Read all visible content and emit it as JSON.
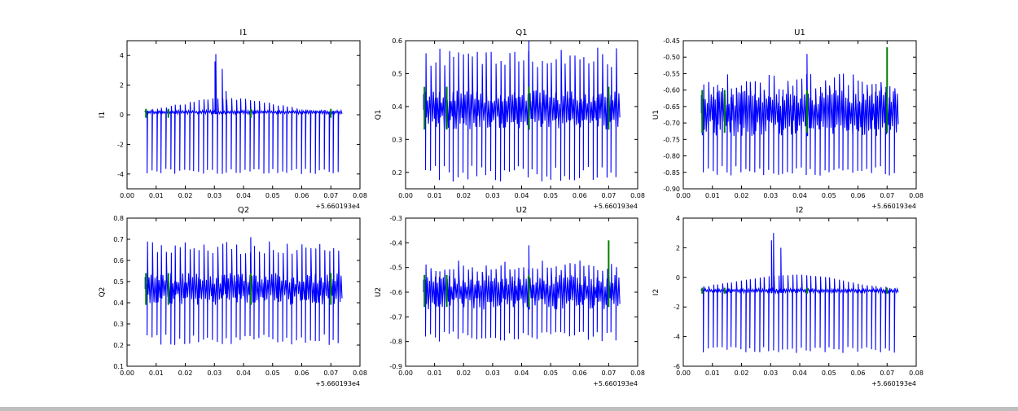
{
  "colors": {
    "signal": "#0000ff",
    "marker": "#008000",
    "axes": "#000000",
    "background": "#ffffff"
  },
  "chart_data": [
    {
      "type": "line",
      "title": "I1",
      "ylabel": "I1",
      "xlabel": "",
      "xlim": [
        0.0,
        0.08
      ],
      "ylim": [
        -5,
        5
      ],
      "x_ticks": [
        "0.00",
        "0.01",
        "0.02",
        "0.03",
        "0.04",
        "0.05",
        "0.06",
        "0.07",
        "0.08"
      ],
      "y_ticks": [
        "-4",
        "-2",
        "0",
        "2",
        "4"
      ],
      "x_offset_label": "+5.660193e4",
      "x_start": 0.0062,
      "x_end": 0.0742,
      "series": [
        {
          "kind": "signal",
          "band": [
            0.05,
            0.3
          ],
          "spike_low": [
            -4.0,
            -3.65
          ],
          "spike_high_envelope": [
            [
              0.0062,
              0.3
            ],
            [
              0.03,
              1.2
            ],
            [
              0.04,
              1.1
            ],
            [
              0.05,
              0.8
            ],
            [
              0.06,
              0.4
            ],
            [
              0.0742,
              0.2
            ]
          ],
          "peaks": [
            [
              0.0305,
              4.1
            ],
            [
              0.0302,
              3.6
            ],
            [
              0.0327,
              3.1
            ],
            [
              0.034,
              1.6
            ]
          ]
        },
        {
          "kind": "marker",
          "x": [
            0.0065,
            0.0142,
            0.0425,
            0.07
          ],
          "low": -0.2,
          "high": 0.4
        }
      ]
    },
    {
      "type": "line",
      "title": "Q1",
      "ylabel": "Q1",
      "xlabel": "",
      "xlim": [
        0.0,
        0.08
      ],
      "ylim": [
        0.15,
        0.6
      ],
      "x_ticks": [
        "0.00",
        "0.01",
        "0.02",
        "0.03",
        "0.04",
        "0.05",
        "0.06",
        "0.07",
        "0.08"
      ],
      "y_ticks": [
        "0.2",
        "0.3",
        "0.4",
        "0.5",
        "0.6"
      ],
      "x_offset_label": "+5.660193e4",
      "x_start": 0.0062,
      "x_end": 0.0742,
      "series": [
        {
          "kind": "signal",
          "band": [
            0.33,
            0.45
          ],
          "spike_low": [
            0.17,
            0.22
          ],
          "spike_high": [
            0.52,
            0.58
          ],
          "peaks": [
            [
              0.0425,
              0.6
            ]
          ]
        },
        {
          "kind": "marker",
          "x": [
            0.0065,
            0.0142,
            0.0425,
            0.07
          ],
          "low": 0.33,
          "high": 0.46
        }
      ]
    },
    {
      "type": "line",
      "title": "U1",
      "ylabel": "U1",
      "xlabel": "",
      "xlim": [
        0.0,
        0.08
      ],
      "ylim": [
        -0.9,
        -0.45
      ],
      "x_ticks": [
        "0.00",
        "0.01",
        "0.02",
        "0.03",
        "0.04",
        "0.05",
        "0.06",
        "0.07",
        "0.08"
      ],
      "y_ticks": [
        "-0.90",
        "-0.85",
        "-0.80",
        "-0.75",
        "-0.70",
        "-0.65",
        "-0.60",
        "-0.55",
        "-0.50",
        "-0.45"
      ],
      "x_offset_label": "+5.660193e4",
      "x_start": 0.0062,
      "x_end": 0.0742,
      "series": [
        {
          "kind": "signal",
          "band": [
            -0.74,
            -0.6
          ],
          "spike_low": [
            -0.86,
            -0.83
          ],
          "spike_high": [
            -0.6,
            -0.55
          ],
          "peaks": [
            [
              0.0425,
              -0.49
            ]
          ]
        },
        {
          "kind": "marker",
          "x": [
            0.0065,
            0.0142,
            0.0425,
            0.07
          ],
          "low": -0.73,
          "high": -0.6,
          "peaks": [
            [
              0.07,
              -0.47
            ]
          ]
        }
      ]
    },
    {
      "type": "line",
      "title": "Q2",
      "ylabel": "Q2",
      "xlabel": "",
      "xlim": [
        0.0,
        0.08
      ],
      "ylim": [
        0.1,
        0.8
      ],
      "x_ticks": [
        "0.00",
        "0.01",
        "0.02",
        "0.03",
        "0.04",
        "0.05",
        "0.06",
        "0.07",
        "0.08"
      ],
      "y_ticks": [
        "0.1",
        "0.2",
        "0.3",
        "0.4",
        "0.5",
        "0.6",
        "0.7",
        "0.8"
      ],
      "x_offset_label": "+5.660193e4",
      "x_start": 0.0062,
      "x_end": 0.0742,
      "series": [
        {
          "kind": "signal",
          "band": [
            0.39,
            0.54
          ],
          "spike_low": [
            0.2,
            0.25
          ],
          "spike_high": [
            0.63,
            0.69
          ],
          "peaks": [
            [
              0.0425,
              0.71
            ]
          ]
        },
        {
          "kind": "marker",
          "x": [
            0.0065,
            0.0142,
            0.0425,
            0.07
          ],
          "low": 0.39,
          "high": 0.54
        }
      ]
    },
    {
      "type": "line",
      "title": "U2",
      "ylabel": "U2",
      "xlabel": "",
      "xlim": [
        0.0,
        0.08
      ],
      "ylim": [
        -0.9,
        -0.3
      ],
      "x_ticks": [
        "0.00",
        "0.01",
        "0.02",
        "0.03",
        "0.04",
        "0.05",
        "0.06",
        "0.07",
        "0.08"
      ],
      "y_ticks": [
        "-0.9",
        "-0.8",
        "-0.7",
        "-0.6",
        "-0.5",
        "-0.4",
        "-0.3"
      ],
      "x_offset_label": "+5.660193e4",
      "x_start": 0.0062,
      "x_end": 0.0742,
      "series": [
        {
          "kind": "signal",
          "band": [
            -0.67,
            -0.53
          ],
          "spike_low": [
            -0.8,
            -0.76
          ],
          "spike_high": [
            -0.52,
            -0.47
          ],
          "peaks": [
            [
              0.0425,
              -0.41
            ]
          ]
        },
        {
          "kind": "marker",
          "x": [
            0.0065,
            0.0142,
            0.0425,
            0.07
          ],
          "low": -0.66,
          "high": -0.53,
          "peaks": [
            [
              0.07,
              -0.39
            ]
          ]
        }
      ]
    },
    {
      "type": "line",
      "title": "I2",
      "ylabel": "I2",
      "xlabel": "",
      "xlim": [
        0.0,
        0.08
      ],
      "ylim": [
        -6,
        4
      ],
      "x_ticks": [
        "0.00",
        "0.01",
        "0.02",
        "0.03",
        "0.04",
        "0.05",
        "0.06",
        "0.07",
        "0.08"
      ],
      "y_ticks": [
        "-6",
        "-4",
        "-2",
        "0",
        "2",
        "4"
      ],
      "x_offset_label": "+5.660193e4",
      "x_start": 0.0062,
      "x_end": 0.0742,
      "series": [
        {
          "kind": "signal",
          "band": [
            -1.05,
            -0.75
          ],
          "spike_low": [
            -5.1,
            -4.7
          ],
          "spike_high_envelope": [
            [
              0.0062,
              -0.7
            ],
            [
              0.03,
              0.1
            ],
            [
              0.04,
              0.2
            ],
            [
              0.05,
              0.0
            ],
            [
              0.06,
              -0.5
            ],
            [
              0.0742,
              -0.8
            ]
          ],
          "peaks": [
            [
              0.031,
              3.0
            ],
            [
              0.0303,
              2.5
            ],
            [
              0.0335,
              2.0
            ]
          ]
        },
        {
          "kind": "marker",
          "x": [
            0.0065,
            0.0142,
            0.0425,
            0.07
          ],
          "low": -1.1,
          "high": -0.7
        }
      ]
    }
  ]
}
